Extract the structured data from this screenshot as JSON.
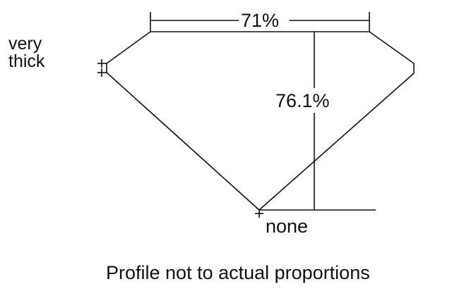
{
  "diagram": {
    "girdle_label_line1": "very",
    "girdle_label_line2": "thick",
    "table_label": "71%",
    "depth_label": "76.1%",
    "culet_label": "none",
    "caption": "Profile not to actual proportions",
    "line_color": "#111111"
  }
}
